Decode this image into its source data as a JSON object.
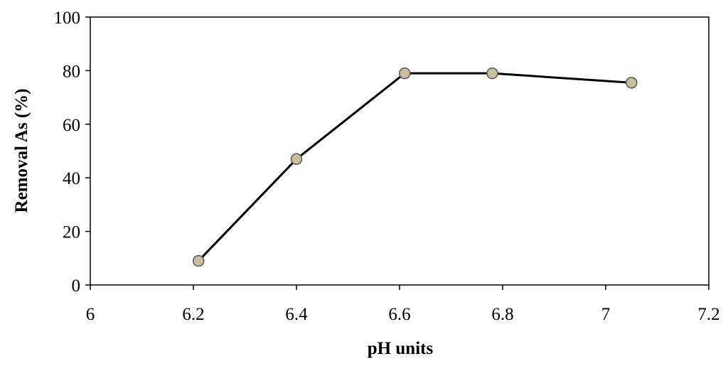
{
  "chart_data": {
    "type": "line",
    "title": "",
    "xlabel": "pH units",
    "ylabel": "Removal As (%)",
    "xlim": [
      6,
      7.2
    ],
    "ylim": [
      0,
      100
    ],
    "xticks": [
      6,
      6.2,
      6.4,
      6.6,
      6.8,
      7,
      7.2
    ],
    "xtick_labels": [
      "6",
      "6.2",
      "6.4",
      "6.6",
      "6.8",
      "7",
      "7.2"
    ],
    "yticks": [
      0,
      20,
      40,
      60,
      80,
      100
    ],
    "ytick_labels": [
      "0",
      "20",
      "40",
      "60",
      "80",
      "100"
    ],
    "grid": false,
    "series": [
      {
        "x": [
          6.21,
          6.4,
          6.61,
          6.78,
          7.05
        ],
        "y": [
          9,
          47,
          79,
          79,
          75.5
        ],
        "line_color": "#000000",
        "marker_fill": "#c8bf9e",
        "marker_edge": "#555555"
      }
    ]
  }
}
